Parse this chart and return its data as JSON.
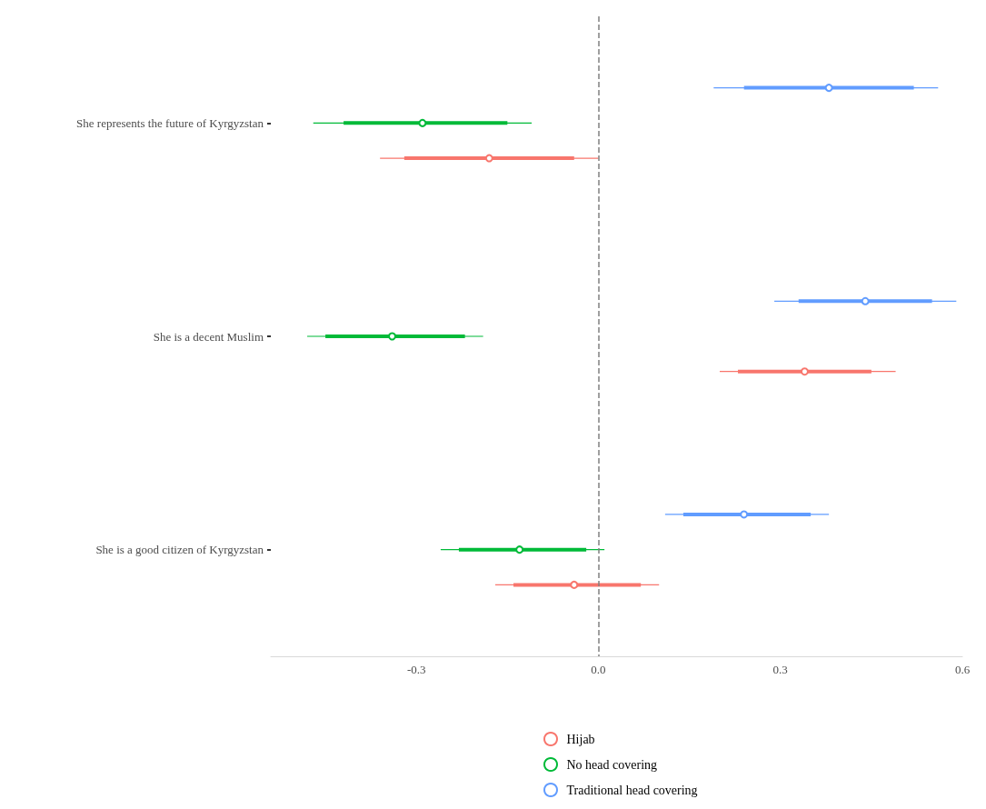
{
  "chart_data": {
    "type": "scatter",
    "orientation": "horizontal",
    "categories": [
      "She represents the future of Kyrgyzstan",
      "She is a decent Muslim",
      "She is a good citizen of Kyrgyzstan"
    ],
    "xlim": [
      -0.54,
      0.6
    ],
    "xticks": [
      {
        "value": -0.3,
        "label": "-0.3"
      },
      {
        "value": 0,
        "label": "0.0"
      },
      {
        "value": 0.3,
        "label": "0.3"
      },
      {
        "value": 0.6,
        "label": "0.6"
      }
    ],
    "grid": false,
    "legend": "bottom",
    "marker": "circle",
    "ref_lines": [
      {
        "axis": "x",
        "value": 0,
        "color": "#808080",
        "line_style": "dashed"
      }
    ],
    "series": [
      {
        "type": "bar",
        "color": "#f8766d",
        "base": [
          -0.32,
          0.23,
          -0.14
        ],
        "values": [
          0.28,
          0.22,
          0.21
        ]
      },
      {
        "type": "bar",
        "color": "#00ba38",
        "base": [
          -0.42,
          -0.45,
          -0.23
        ],
        "values": [
          0.27,
          0.23,
          0.21
        ]
      },
      {
        "type": "bar",
        "color": "#619cff",
        "base": [
          0.24,
          0.33,
          0.14
        ],
        "values": [
          0.28,
          0.22,
          0.21
        ]
      },
      {
        "name": "Hijab",
        "color": "#f8766d",
        "values": [
          -0.18,
          0.34,
          -0.04
        ],
        "errors": [
          [
            -0.36,
            0.0
          ],
          [
            0.2,
            0.49
          ],
          [
            -0.17,
            0.1
          ]
        ]
      },
      {
        "name": "No head covering",
        "color": "#00ba38",
        "values": [
          -0.29,
          -0.34,
          -0.13
        ],
        "errors": [
          [
            -0.47,
            -0.11
          ],
          [
            -0.48,
            -0.19
          ],
          [
            -0.26,
            0.01
          ]
        ]
      },
      {
        "name": "Traditional head covering",
        "color": "#619cff",
        "values": [
          0.38,
          0.44,
          0.24
        ],
        "errors": [
          [
            0.19,
            0.56
          ],
          [
            0.29,
            0.59
          ],
          [
            0.11,
            0.38
          ]
        ]
      }
    ]
  }
}
